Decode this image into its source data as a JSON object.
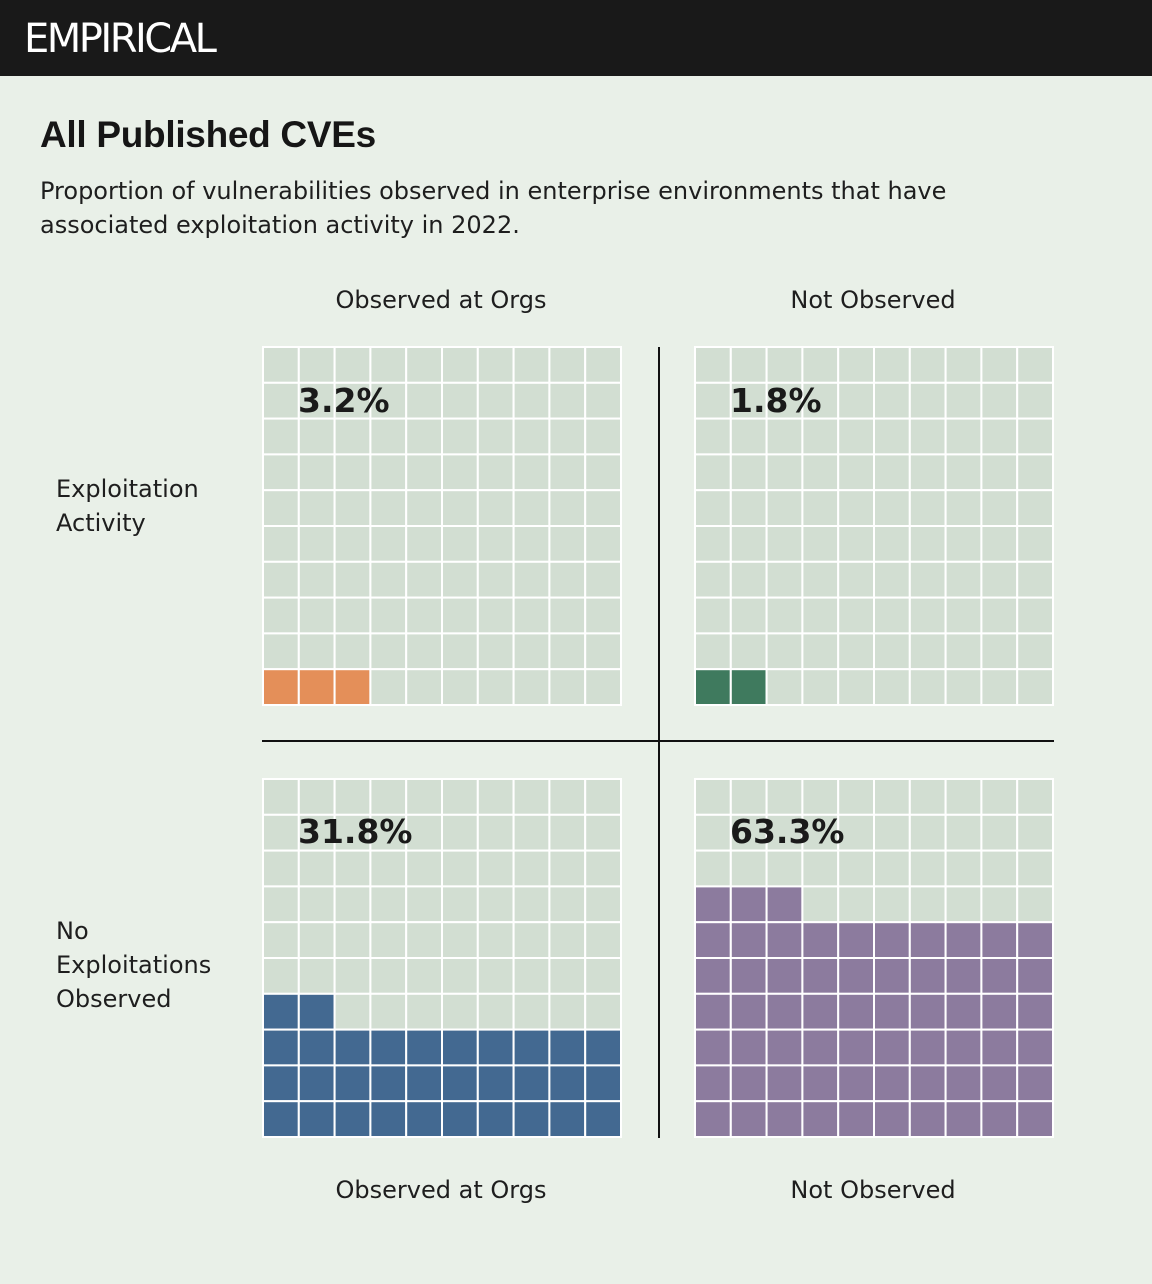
{
  "brand": "EMPIRICAL",
  "colors": {
    "background": "#e9f0e8",
    "empty_cell": "#d2ded2",
    "grid_line": "#ffffff",
    "divider": "#111111"
  },
  "chart_data": {
    "type": "waffle",
    "title": "All Published CVEs",
    "subtitle": "Proportion of vulnerabilities observed in enterprise environments that have associated exploitation activity in 2022.",
    "grid": {
      "rows": 10,
      "cols": 10
    },
    "columns": [
      "Observed at Orgs",
      "Not Observed"
    ],
    "rows": [
      "Exploitation\nActivity",
      "No\nExploitations\nObserved"
    ],
    "bottom_columns": [
      "Observed at Orgs",
      "Not Observed"
    ],
    "cells": [
      {
        "row": "Exploitation Activity",
        "column": "Observed at Orgs",
        "label": "3.2%",
        "value": 3.2,
        "filled_squares": 3,
        "color": "#e48f59"
      },
      {
        "row": "Exploitation Activity",
        "column": "Not Observed",
        "label": "1.8%",
        "value": 1.8,
        "filled_squares": 2,
        "color": "#3f7a5e"
      },
      {
        "row": "No Exploitations Observed",
        "column": "Observed at Orgs",
        "label": "31.8%",
        "value": 31.8,
        "filled_squares": 32,
        "color": "#436991"
      },
      {
        "row": "No Exploitations Observed",
        "column": "Not Observed",
        "label": "63.3%",
        "value": 63.3,
        "filled_squares": 63,
        "color": "#8c7b9e"
      }
    ]
  }
}
